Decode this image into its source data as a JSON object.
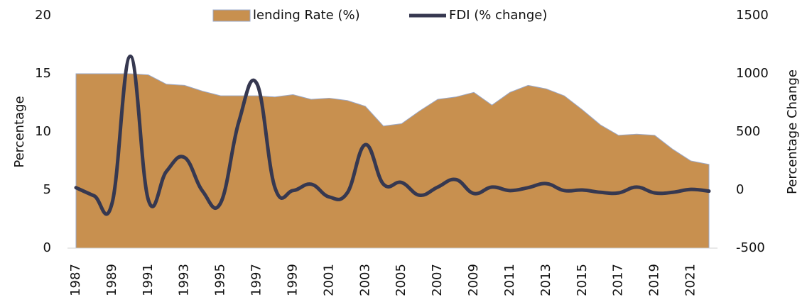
{
  "chart_data": {
    "type": "area-line",
    "categories": [
      "1987",
      null,
      "1989",
      null,
      "1991",
      null,
      "1993",
      null,
      "1995",
      null,
      "1997",
      null,
      "1999",
      null,
      "2001",
      null,
      "2003",
      null,
      "2005",
      null,
      "2007",
      null,
      "2009",
      null,
      "2011",
      null,
      "2013",
      null,
      "2015",
      null,
      "2017",
      null,
      "2019",
      null,
      "2021",
      null
    ],
    "series": [
      {
        "name": "lending Rate (%)",
        "color": "#c8904f",
        "values": [
          15,
          15,
          15,
          15,
          14.9,
          14.1,
          14,
          13.5,
          13.1,
          13.1,
          13.1,
          13,
          13.2,
          12.8,
          12.9,
          12.7,
          12.2,
          10.5,
          10.7,
          11.8,
          12.8,
          13,
          13.4,
          12.3,
          13.4,
          14,
          13.7,
          13.1,
          11.9,
          10.6,
          9.7,
          9.8,
          9.7,
          8.5,
          7.5,
          7.2
        ]
      },
      {
        "name": "FDI (% change)",
        "color": "#363850",
        "axis": "y2",
        "values": [
          20,
          -50,
          -110,
          1150,
          -85,
          160,
          280,
          -10,
          -110,
          585,
          915,
          20,
          -5,
          50,
          -60,
          -25,
          390,
          50,
          65,
          -45,
          25,
          90,
          -30,
          25,
          -5,
          20,
          55,
          -5,
          0,
          -20,
          -25,
          25,
          -25,
          -20,
          5,
          -10
        ]
      }
    ],
    "ylabel": "Percentage",
    "y2label": "Percentage Change",
    "ylim": [
      0,
      20
    ],
    "yticks": [
      0,
      5,
      10,
      15,
      20
    ],
    "y2lim": [
      -500,
      1500
    ],
    "y2ticks": [
      -500,
      0,
      500,
      1000,
      1500
    ],
    "legend": "top"
  }
}
